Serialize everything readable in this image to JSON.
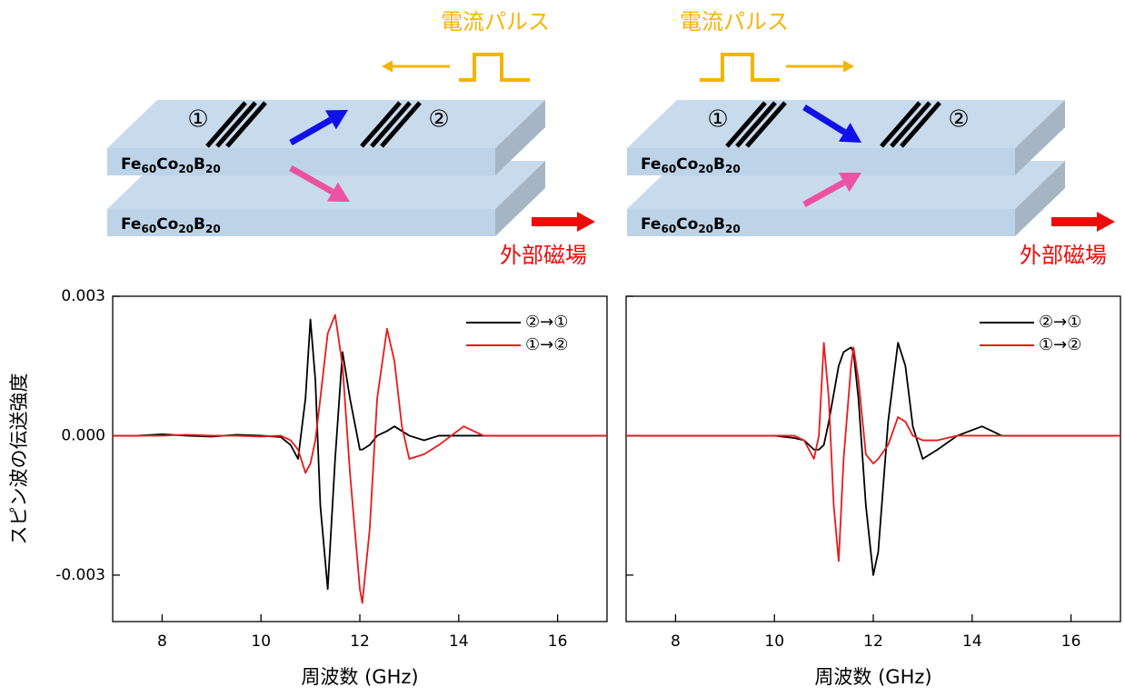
{
  "diagrams": [
    {
      "pulse_label": "電流パルス",
      "port1": "①",
      "port2": "②",
      "layer_formula": [
        "Fe",
        "60",
        "Co",
        "20",
        "B",
        "20"
      ],
      "field_label": "外部磁場"
    },
    {
      "pulse_label": "電流パルス",
      "port1": "①",
      "port2": "②",
      "layer_formula": [
        "Fe",
        "60",
        "Co",
        "20",
        "B",
        "20"
      ],
      "field_label": "外部磁場"
    }
  ],
  "chart_data": [
    {
      "type": "line",
      "xlabel": "周波数 (GHz)",
      "ylabel": "スピン波の伝送強度",
      "xlim": [
        7,
        17
      ],
      "xticks": [
        8,
        10,
        12,
        14,
        16
      ],
      "ylim": [
        -0.004,
        0.003
      ],
      "yticks": [
        0.003,
        {
          "value": 0,
          "label": "0.000"
        },
        -0.003
      ],
      "show_ytick_labels": true,
      "legend": "upper right",
      "x": [
        7,
        7.5,
        8,
        8.5,
        9,
        9.5,
        10,
        10.4,
        10.6,
        10.75,
        10.9,
        11.0,
        11.1,
        11.2,
        11.35,
        11.5,
        11.65,
        11.8,
        12.0,
        12.05,
        12.2,
        12.35,
        12.55,
        12.7,
        12.85,
        13.0,
        13.3,
        13.6,
        14.1,
        14.5,
        15,
        15.5,
        16,
        16.5,
        17
      ],
      "series": [
        {
          "name": "②→①",
          "color": "#000000",
          "values": [
            0,
            0,
            3e-05,
            0,
            -2e-05,
            2e-05,
            0,
            -3e-05,
            -0.0002,
            -0.0005,
            0.0008,
            0.0025,
            0.0012,
            -0.0015,
            -0.0033,
            -0.0005,
            0.0018,
            0.0008,
            -0.0003,
            -0.0003,
            -0.0002,
            0,
            0.0001,
            0.0002,
            0.0001,
            0,
            -0.0001,
            0,
            0,
            0,
            0,
            0,
            0,
            0,
            0
          ]
        },
        {
          "name": "①→②",
          "color": "#e8191a",
          "values": [
            0,
            0,
            0,
            2e-05,
            0,
            0,
            -2e-05,
            0,
            -0.0001,
            -0.0003,
            -0.0008,
            -0.0006,
            -0.0001,
            0.0008,
            0.0022,
            0.0026,
            0.0015,
            -0.0008,
            -0.0033,
            -0.0036,
            -0.002,
            0.0008,
            0.0023,
            0.0016,
            0.0002,
            -0.0005,
            -0.0004,
            -0.0002,
            0.0002,
            0,
            0,
            0,
            0,
            0,
            0
          ]
        }
      ]
    },
    {
      "type": "line",
      "xlabel": "周波数 (GHz)",
      "xlim": [
        7,
        17
      ],
      "xticks": [
        8,
        10,
        12,
        14,
        16
      ],
      "ylim": [
        -0.004,
        0.003
      ],
      "yticks": [
        0.003,
        {
          "value": 0,
          "label": "0.000"
        },
        -0.003
      ],
      "show_ytick_labels": false,
      "legend": "upper right",
      "x": [
        7,
        7.5,
        8,
        8.5,
        9,
        9.5,
        10,
        10.4,
        10.6,
        10.8,
        10.9,
        11.0,
        11.1,
        11.2,
        11.3,
        11.4,
        11.55,
        11.6,
        11.7,
        11.85,
        12.0,
        12.1,
        12.3,
        12.5,
        12.65,
        12.8,
        13.0,
        13.3,
        13.7,
        14.2,
        14.6,
        15,
        15.5,
        16,
        16.5,
        17
      ],
      "series": [
        {
          "name": "②→①",
          "color": "#000000",
          "values": [
            0,
            0,
            0,
            0,
            0,
            0,
            0,
            -5e-05,
            -0.0001,
            -0.0003,
            -0.0003,
            -0.0002,
            0.0003,
            0.0009,
            0.0015,
            0.0018,
            0.0019,
            0.0018,
            0.0008,
            -0.0015,
            -0.003,
            -0.0025,
            0.0003,
            0.002,
            0.0015,
            0.0002,
            -0.0005,
            -0.0003,
            0,
            0.0002,
            0,
            0,
            0,
            0,
            0,
            0
          ]
        },
        {
          "name": "①→②",
          "color": "#e8191a",
          "values": [
            0,
            0,
            0,
            0,
            0,
            0,
            0,
            0,
            -0.0001,
            -0.0005,
            0,
            0.002,
            0.0008,
            -0.0015,
            -0.0027,
            -0.0005,
            0.0015,
            0.0019,
            0.0012,
            -0.0004,
            -0.0006,
            -0.0005,
            -0.0002,
            0.0004,
            0.0003,
            0,
            -0.0001,
            -0.0001,
            0,
            0,
            0,
            0,
            0,
            0,
            0,
            0
          ]
        }
      ]
    }
  ]
}
